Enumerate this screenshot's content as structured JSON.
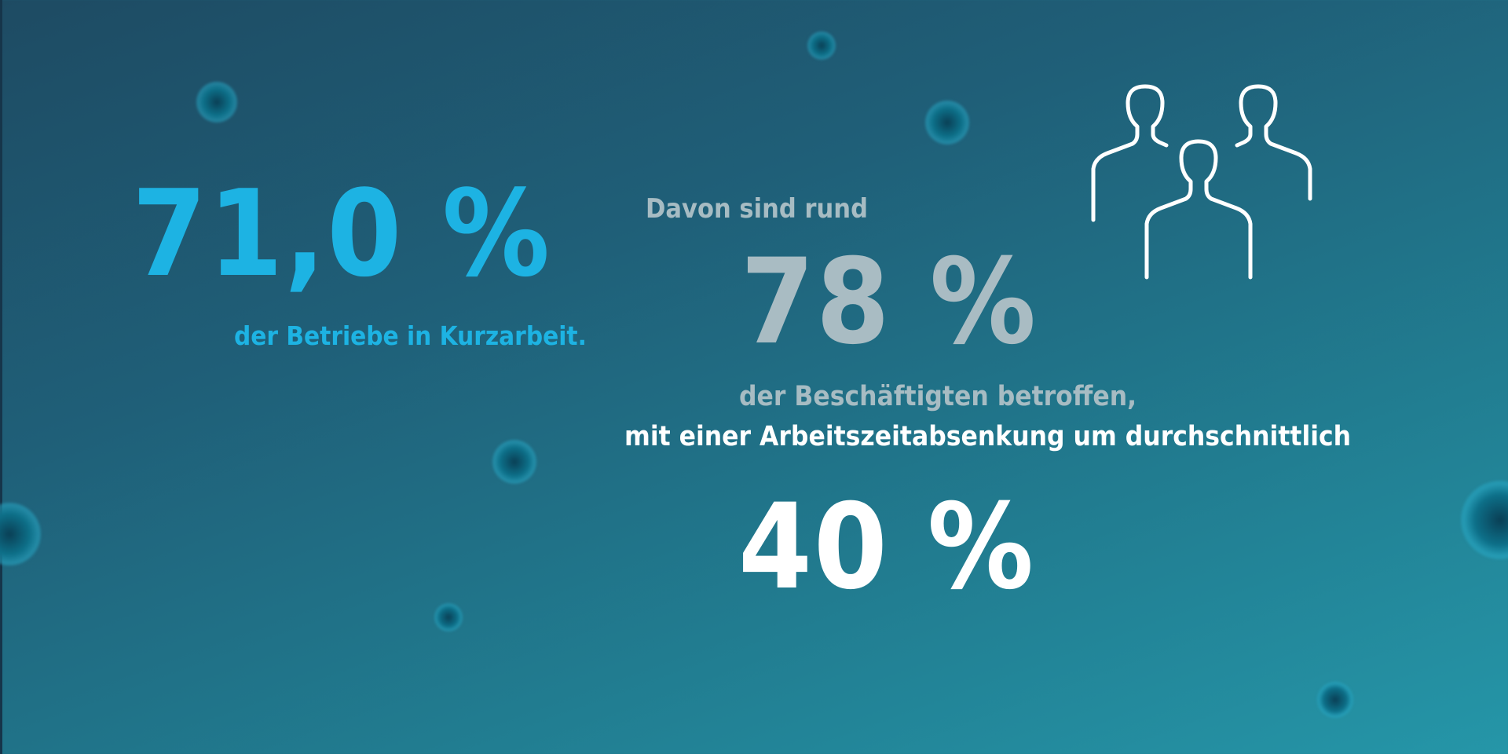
{
  "stats": {
    "businesses": {
      "value": "71,0 %",
      "label": "der Betriebe in Kurzarbeit."
    },
    "employees": {
      "intro": "Davon sind rund",
      "value": "78 %",
      "label": "der Beschäftigten betroffen,"
    },
    "hours_reduction": {
      "intro": "mit einer Arbeitszeitabsenkung um durchschnittlich",
      "value": "40 %"
    }
  },
  "icons": {
    "people": "people-group-icon",
    "decoration": "virus-icon"
  },
  "colors": {
    "accent_blue": "#1db3e3",
    "grey_text": "#a7bcc3",
    "white_text": "#ffffff",
    "background_top": "#1e4b63",
    "background_bottom": "#2596a8"
  }
}
